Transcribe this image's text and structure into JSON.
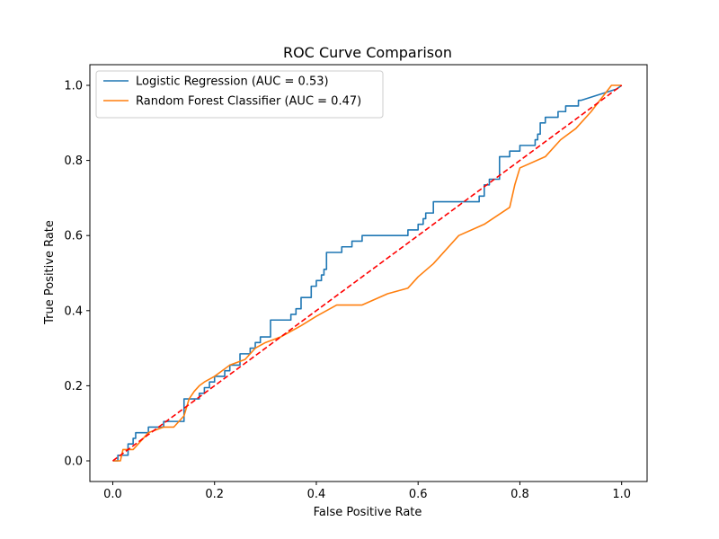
{
  "chart_data": {
    "type": "line",
    "title": "ROC Curve Comparison",
    "xlabel": "False Positive Rate",
    "ylabel": "True Positive Rate",
    "xlim": [
      -0.045,
      1.05
    ],
    "ylim": [
      -0.055,
      1.055
    ],
    "xticks": [
      0.0,
      0.2,
      0.4,
      0.6,
      0.8,
      1.0
    ],
    "yticks": [
      0.0,
      0.2,
      0.4,
      0.6,
      0.8,
      1.0
    ],
    "xtick_labels": [
      "0.0",
      "0.2",
      "0.4",
      "0.6",
      "0.8",
      "1.0"
    ],
    "ytick_labels": [
      "0.0",
      "0.2",
      "0.4",
      "0.6",
      "0.8",
      "1.0"
    ],
    "grid": false,
    "legend_position": "top-left",
    "series": [
      {
        "name": "Logistic Regression (AUC = 0.53)",
        "color": "#1f77b4",
        "style": "step",
        "x": [
          0.0,
          0.01,
          0.01,
          0.03,
          0.03,
          0.04,
          0.04,
          0.045,
          0.045,
          0.07,
          0.07,
          0.1,
          0.1,
          0.14,
          0.14,
          0.17,
          0.17,
          0.18,
          0.18,
          0.19,
          0.19,
          0.2,
          0.2,
          0.22,
          0.22,
          0.23,
          0.23,
          0.25,
          0.25,
          0.27,
          0.27,
          0.28,
          0.28,
          0.29,
          0.29,
          0.31,
          0.31,
          0.35,
          0.35,
          0.36,
          0.36,
          0.37,
          0.37,
          0.39,
          0.39,
          0.4,
          0.4,
          0.41,
          0.41,
          0.415,
          0.415,
          0.42,
          0.42,
          0.45,
          0.45,
          0.47,
          0.47,
          0.49,
          0.49,
          0.58,
          0.58,
          0.6,
          0.6,
          0.61,
          0.61,
          0.615,
          0.615,
          0.63,
          0.63,
          0.72,
          0.72,
          0.73,
          0.73,
          0.74,
          0.74,
          0.76,
          0.76,
          0.78,
          0.78,
          0.8,
          0.8,
          0.83,
          0.83,
          0.835,
          0.835,
          0.84,
          0.84,
          0.85,
          0.85,
          0.875,
          0.875,
          0.89,
          0.89,
          0.915,
          0.915,
          0.92,
          0.92,
          0.99,
          0.99,
          1.0
        ],
        "y": [
          0.0,
          0.0,
          0.015,
          0.015,
          0.045,
          0.045,
          0.06,
          0.06,
          0.075,
          0.075,
          0.09,
          0.09,
          0.105,
          0.105,
          0.165,
          0.165,
          0.18,
          0.18,
          0.195,
          0.195,
          0.21,
          0.21,
          0.225,
          0.225,
          0.24,
          0.24,
          0.255,
          0.255,
          0.285,
          0.285,
          0.3,
          0.3,
          0.315,
          0.315,
          0.33,
          0.33,
          0.375,
          0.375,
          0.39,
          0.39,
          0.405,
          0.405,
          0.435,
          0.435,
          0.465,
          0.465,
          0.48,
          0.48,
          0.495,
          0.495,
          0.51,
          0.51,
          0.555,
          0.555,
          0.57,
          0.57,
          0.585,
          0.585,
          0.6,
          0.6,
          0.615,
          0.615,
          0.63,
          0.63,
          0.645,
          0.645,
          0.66,
          0.66,
          0.69,
          0.69,
          0.705,
          0.705,
          0.735,
          0.735,
          0.75,
          0.75,
          0.81,
          0.81,
          0.825,
          0.825,
          0.84,
          0.84,
          0.855,
          0.855,
          0.87,
          0.87,
          0.9,
          0.9,
          0.915,
          0.915,
          0.93,
          0.93,
          0.945,
          0.945,
          0.96,
          0.96,
          0.96,
          0.99,
          0.99,
          1.0
        ]
      },
      {
        "name": "Random Forest Classifier (AUC = 0.47)",
        "color": "#ff7f0e",
        "style": "line",
        "x": [
          0.0,
          0.015,
          0.02,
          0.04,
          0.07,
          0.1,
          0.12,
          0.14,
          0.15,
          0.16,
          0.17,
          0.18,
          0.2,
          0.23,
          0.26,
          0.28,
          0.3,
          0.33,
          0.37,
          0.4,
          0.44,
          0.49,
          0.54,
          0.58,
          0.6,
          0.63,
          0.68,
          0.73,
          0.78,
          0.79,
          0.8,
          0.85,
          0.88,
          0.91,
          0.94,
          0.98,
          1.0
        ],
        "y": [
          0.0,
          0.0,
          0.03,
          0.03,
          0.075,
          0.09,
          0.09,
          0.12,
          0.165,
          0.185,
          0.2,
          0.21,
          0.225,
          0.255,
          0.27,
          0.3,
          0.315,
          0.33,
          0.36,
          0.385,
          0.415,
          0.415,
          0.445,
          0.46,
          0.49,
          0.525,
          0.6,
          0.63,
          0.675,
          0.735,
          0.78,
          0.81,
          0.855,
          0.885,
          0.93,
          1.0,
          1.0
        ]
      },
      {
        "name": "",
        "color": "#ff0000",
        "style": "dashed",
        "x": [
          0.0,
          1.0
        ],
        "y": [
          0.0,
          1.0
        ]
      }
    ]
  }
}
